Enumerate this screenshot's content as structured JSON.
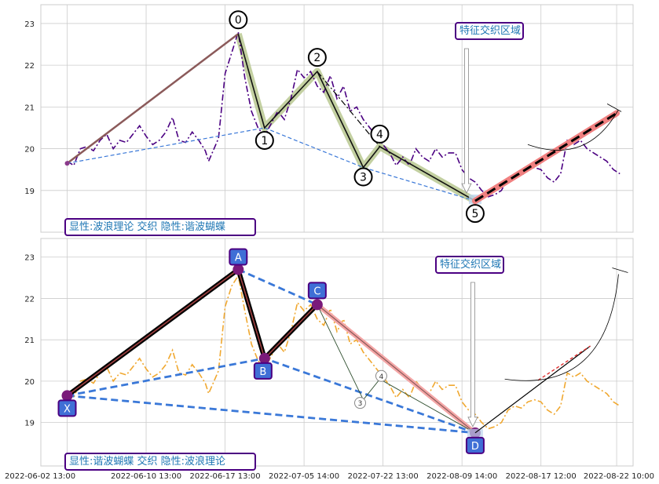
{
  "chart_data": [
    {
      "type": "line",
      "panel": "top",
      "ylim": [
        18.0,
        23.45
      ],
      "yticks": [
        19,
        20,
        21,
        22,
        23
      ],
      "grid": true,
      "annotation_box": "特征交织区域",
      "corner_label": "显性:波浪理论 交织 隐性:谐波蝴蝶",
      "price_series": {
        "style": "dash-dot",
        "color": "#4b0082",
        "x": [
          0.0,
          0.1,
          0.2,
          0.3,
          0.4,
          0.5,
          0.6,
          0.7,
          0.8,
          0.9,
          1.0,
          1.1,
          1.2,
          1.3,
          1.4,
          1.5,
          1.6,
          1.7,
          1.8,
          1.9,
          2.0,
          2.1,
          2.15,
          2.3,
          2.4,
          2.5,
          2.6,
          2.7,
          2.8,
          2.9,
          3.0,
          3.1,
          3.2,
          3.3,
          3.4,
          3.5,
          3.6,
          3.7,
          3.8,
          3.9,
          4.0,
          4.1,
          4.2,
          4.3,
          4.4,
          4.5,
          4.6,
          4.7,
          4.8,
          4.9,
          5.0,
          5.1,
          5.2,
          5.3,
          5.4,
          5.5,
          5.6,
          5.7,
          5.8,
          5.9,
          6.0,
          6.1,
          6.2,
          6.3,
          6.4,
          6.5,
          6.6,
          6.7,
          6.8,
          6.9,
          7.0,
          7.1,
          7.2,
          7.3,
          7.4,
          7.5,
          7.6,
          7.7,
          7.8,
          7.9,
          8.0,
          8.1,
          8.2,
          8.3,
          8.4
        ],
        "y": [
          19.7,
          19.6,
          20.0,
          20.05,
          19.95,
          20.2,
          20.35,
          20.0,
          20.2,
          20.15,
          20.35,
          20.55,
          20.3,
          20.1,
          20.2,
          20.4,
          20.75,
          20.2,
          20.15,
          20.4,
          20.2,
          19.95,
          19.7,
          20.25,
          21.8,
          22.3,
          22.8,
          21.7,
          20.9,
          20.5,
          20.3,
          20.6,
          20.9,
          20.7,
          21.2,
          21.9,
          21.7,
          21.85,
          21.5,
          21.35,
          21.75,
          21.2,
          21.5,
          20.9,
          21.0,
          20.7,
          20.5,
          20.3,
          20.1,
          19.9,
          19.6,
          19.8,
          19.6,
          20.0,
          19.8,
          19.7,
          20.0,
          19.8,
          19.9,
          19.9,
          19.5,
          19.3,
          19.2,
          19.0,
          18.85,
          18.9,
          19.0,
          19.3,
          19.4,
          19.35,
          19.5,
          19.55,
          19.5,
          19.3,
          19.2,
          19.4,
          20.2,
          20.1,
          20.2,
          20.0,
          19.9,
          19.8,
          19.7,
          19.5,
          19.4
        ]
      },
      "wave_points": [
        {
          "label": "0",
          "x": 2.6,
          "y": 22.75
        },
        {
          "label": "1",
          "x": 3.0,
          "y": 20.5
        },
        {
          "label": "2",
          "x": 3.8,
          "y": 21.85
        },
        {
          "label": "3",
          "x": 4.5,
          "y": 19.55
        },
        {
          "label": "4",
          "x": 4.75,
          "y": 20.05
        },
        {
          "label": "5",
          "x": 6.2,
          "y": 18.75
        }
      ],
      "start_point": {
        "x": 0.0,
        "y": 19.65
      },
      "projection": {
        "x": [
          6.2,
          8.35
        ],
        "y": [
          18.75,
          20.85
        ]
      }
    },
    {
      "type": "line",
      "panel": "bottom",
      "ylim": [
        17.95,
        23.45
      ],
      "yticks": [
        19,
        20,
        21,
        22,
        23
      ],
      "grid": true,
      "annotation_box": "特征交织区域",
      "corner_label": "显性:谐波蝴蝶 交织 隐性:波浪理论",
      "price_series": {
        "style": "dash-dot",
        "color": "#f0a830",
        "x": [
          0.0,
          0.1,
          0.2,
          0.3,
          0.4,
          0.5,
          0.6,
          0.7,
          0.8,
          0.9,
          1.0,
          1.1,
          1.2,
          1.3,
          1.4,
          1.5,
          1.6,
          1.7,
          1.8,
          1.9,
          2.0,
          2.1,
          2.15,
          2.3,
          2.4,
          2.5,
          2.6,
          2.7,
          2.8,
          2.9,
          3.0,
          3.1,
          3.2,
          3.3,
          3.4,
          3.5,
          3.6,
          3.7,
          3.8,
          3.9,
          4.0,
          4.1,
          4.2,
          4.3,
          4.4,
          4.5,
          4.6,
          4.7,
          4.8,
          4.9,
          5.0,
          5.1,
          5.2,
          5.3,
          5.4,
          5.5,
          5.6,
          5.7,
          5.8,
          5.9,
          6.0,
          6.1,
          6.2,
          6.3,
          6.4,
          6.5,
          6.6,
          6.7,
          6.8,
          6.9,
          7.0,
          7.1,
          7.2,
          7.3,
          7.4,
          7.5,
          7.6,
          7.7,
          7.8,
          7.9,
          8.0,
          8.1,
          8.2,
          8.3,
          8.4
        ],
        "y": [
          19.7,
          19.6,
          20.0,
          20.05,
          19.95,
          20.2,
          20.35,
          20.0,
          20.2,
          20.15,
          20.35,
          20.55,
          20.3,
          20.1,
          20.2,
          20.4,
          20.75,
          20.2,
          20.15,
          20.4,
          20.2,
          19.95,
          19.7,
          20.25,
          21.8,
          22.3,
          22.55,
          21.7,
          20.9,
          20.5,
          20.3,
          20.6,
          20.9,
          20.7,
          21.2,
          21.9,
          21.7,
          21.85,
          21.5,
          21.35,
          21.75,
          21.2,
          21.5,
          20.9,
          21.0,
          20.7,
          20.5,
          20.3,
          20.1,
          19.9,
          19.6,
          19.8,
          19.6,
          20.0,
          19.8,
          19.7,
          20.0,
          19.8,
          19.9,
          19.9,
          19.5,
          19.3,
          19.2,
          19.0,
          18.85,
          18.9,
          19.0,
          19.3,
          19.4,
          19.35,
          19.5,
          19.55,
          19.5,
          19.3,
          19.2,
          19.4,
          20.2,
          20.1,
          20.2,
          20.0,
          19.9,
          19.8,
          19.7,
          19.5,
          19.4
        ]
      },
      "harmonic_points": [
        {
          "label": "X",
          "x": 0.0,
          "y": 19.65
        },
        {
          "label": "A",
          "x": 2.6,
          "y": 22.7
        },
        {
          "label": "B",
          "x": 3.0,
          "y": 20.55
        },
        {
          "label": "C",
          "x": 3.8,
          "y": 21.85
        },
        {
          "label": "D",
          "x": 6.2,
          "y": 18.75
        }
      ],
      "hidden_wave_points": [
        {
          "label": "3",
          "x": 4.5,
          "y": 19.55
        },
        {
          "label": "4",
          "x": 4.75,
          "y": 20.05
        }
      ],
      "projection": {
        "x": [
          6.2,
          7.95
        ],
        "y": [
          18.75,
          20.85
        ]
      }
    }
  ],
  "x_tick_labels": [
    "2022-06-02 13:00",
    "2022-06-10 13:00",
    "2022-06-17 13:00",
    "2022-07-05 14:00",
    "2022-07-22 13:00",
    "2022-08-09 14:00",
    "2022-08-17 12:00",
    "2022-08-22 10:00"
  ],
  "colors": {
    "grid": "#cccccc",
    "label_text": "#1f77b4",
    "box_border": "#4b0082",
    "harmonic_box_fill": "#3f6fd6",
    "bold_projection": "#f08080",
    "green_highlight": "#b8c890",
    "dashed_blue": "#3a78d8"
  }
}
